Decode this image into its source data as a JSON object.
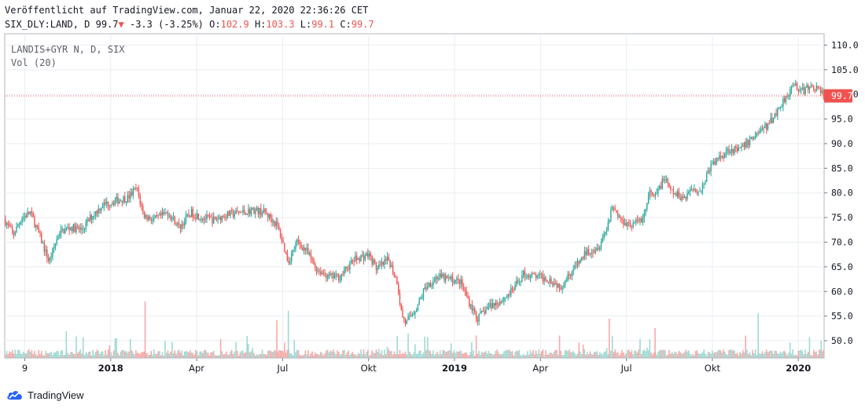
{
  "header": {
    "published": "Veröffentlicht auf TradingView.com, Januar 22, 2020 22:36:26 CET",
    "symbol": "SIX_DLY:LAND, D",
    "last": "99.7",
    "down_arrow": "▼",
    "change": "-3.3 (-3.25%)",
    "o_label": "O:",
    "o_value": "102.9",
    "h_label": "H:",
    "h_value": "103.3",
    "l_label": "L:",
    "l_value": "99.1",
    "c_label": "C:",
    "c_value": "99.7"
  },
  "legend": {
    "instrument": "LANDIS+GYR N, D, SIX",
    "volume": "Vol (20)"
  },
  "brand": {
    "name": "TradingView"
  },
  "colors": {
    "up": "#26a69a",
    "down": "#ef5350",
    "vol_up": "#9fd9d3",
    "vol_down": "#f7a9a7",
    "grid": "#e9eef2",
    "axis": "#131722",
    "price_line": "#ef5350"
  },
  "chart_data": {
    "type": "candlestick",
    "title": "LANDIS+GYR N, D, SIX",
    "ylim": [
      46.5,
      112.3
    ],
    "y_ticks": [
      110,
      105,
      100,
      95,
      90,
      85,
      80,
      75,
      70,
      65,
      60,
      55,
      50
    ],
    "y_tick_labels": [
      "110.0",
      "105.0",
      "100.0",
      "95.0",
      "90.0",
      "85.0",
      "80.0",
      "75.0",
      "70.0",
      "65.0",
      "60.0",
      "55.0",
      "50.0"
    ],
    "x_ticks": [
      {
        "label": "9",
        "month": 0,
        "bold": false
      },
      {
        "label": "2018",
        "month": 3,
        "bold": true
      },
      {
        "label": "Apr",
        "month": 6,
        "bold": false
      },
      {
        "label": "Jul",
        "month": 9,
        "bold": false
      },
      {
        "label": "Okt",
        "month": 12,
        "bold": false
      },
      {
        "label": "2019",
        "month": 15,
        "bold": true
      },
      {
        "label": "Apr",
        "month": 18,
        "bold": false
      },
      {
        "label": "Jul",
        "month": 21,
        "bold": false
      },
      {
        "label": "Okt",
        "month": 24,
        "bold": false
      },
      {
        "label": "2020",
        "month": 27,
        "bold": true
      }
    ],
    "x_range_months": [
      -0.7,
      27.9
    ],
    "last_price": 99.7,
    "last_price_label": "99.7",
    "price_path_monthly": [
      [
        -0.7,
        74.5
      ],
      [
        -0.4,
        71.5
      ],
      [
        -0.1,
        75.0
      ],
      [
        0.2,
        76.0
      ],
      [
        0.6,
        70.0
      ],
      [
        0.85,
        66.0
      ],
      [
        1.2,
        72.0
      ],
      [
        1.6,
        73.0
      ],
      [
        2.0,
        72.5
      ],
      [
        2.3,
        75.0
      ],
      [
        2.7,
        77.5
      ],
      [
        3.2,
        78.5
      ],
      [
        3.6,
        79.0
      ],
      [
        3.9,
        81.0
      ],
      [
        4.15,
        75.5
      ],
      [
        4.5,
        74.5
      ],
      [
        5.0,
        76.0
      ],
      [
        5.4,
        73.0
      ],
      [
        5.8,
        76.0
      ],
      [
        6.2,
        75.0
      ],
      [
        6.6,
        74.5
      ],
      [
        7.0,
        75.5
      ],
      [
        7.5,
        76.0
      ],
      [
        8.0,
        76.5
      ],
      [
        8.4,
        76.0
      ],
      [
        8.8,
        73.5
      ],
      [
        9.0,
        70.0
      ],
      [
        9.2,
        66.0
      ],
      [
        9.5,
        70.0
      ],
      [
        9.8,
        68.5
      ],
      [
        10.2,
        64.5
      ],
      [
        10.6,
        63.0
      ],
      [
        11.0,
        63.0
      ],
      [
        11.5,
        66.5
      ],
      [
        12.0,
        67.5
      ],
      [
        12.3,
        64.5
      ],
      [
        12.7,
        66.5
      ],
      [
        13.0,
        62.0
      ],
      [
        13.15,
        55.5
      ],
      [
        13.3,
        53.5
      ],
      [
        13.7,
        57.0
      ],
      [
        14.0,
        61.0
      ],
      [
        14.4,
        63.0
      ],
      [
        14.8,
        62.5
      ],
      [
        15.2,
        62.0
      ],
      [
        15.5,
        58.0
      ],
      [
        15.8,
        54.5
      ],
      [
        16.2,
        57.0
      ],
      [
        16.6,
        58.0
      ],
      [
        17.0,
        60.0
      ],
      [
        17.4,
        63.5
      ],
      [
        17.9,
        63.0
      ],
      [
        18.3,
        62.5
      ],
      [
        18.7,
        61.0
      ],
      [
        19.0,
        63.5
      ],
      [
        19.3,
        65.5
      ],
      [
        19.6,
        68.0
      ],
      [
        20.0,
        69.0
      ],
      [
        20.3,
        72.5
      ],
      [
        20.5,
        77.5
      ],
      [
        20.8,
        74.5
      ],
      [
        21.2,
        73.5
      ],
      [
        21.6,
        75.0
      ],
      [
        21.8,
        80.0
      ],
      [
        22.0,
        79.0
      ],
      [
        22.3,
        83.0
      ],
      [
        22.6,
        80.0
      ],
      [
        23.0,
        79.0
      ],
      [
        23.3,
        81.0
      ],
      [
        23.6,
        80.5
      ],
      [
        23.9,
        85.0
      ],
      [
        24.2,
        87.0
      ],
      [
        24.6,
        89.0
      ],
      [
        24.9,
        88.5
      ],
      [
        25.2,
        90.0
      ],
      [
        25.6,
        92.5
      ],
      [
        25.9,
        93.5
      ],
      [
        26.2,
        96.0
      ],
      [
        26.6,
        100.0
      ],
      [
        26.9,
        102.0
      ],
      [
        27.1,
        100.5
      ],
      [
        27.4,
        101.5
      ],
      [
        27.6,
        101.5
      ],
      [
        27.9,
        99.7
      ]
    ]
  }
}
